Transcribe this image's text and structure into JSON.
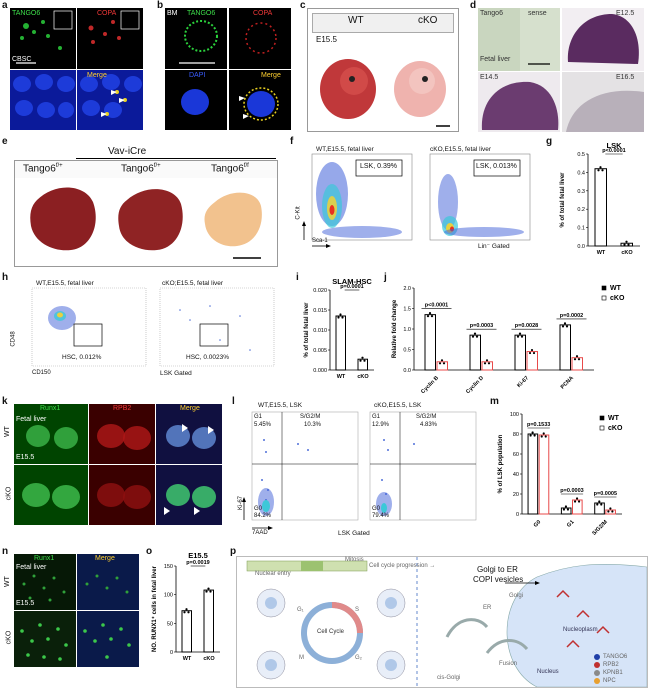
{
  "panels": {
    "a": {
      "letter": "a",
      "tango6": "TANGO6",
      "copa": "COPA",
      "cell": "CBSC",
      "merge": "Merge"
    },
    "b": {
      "letter": "b",
      "bm": "BM",
      "tango6": "TANGO6",
      "copa": "COPA",
      "dapi": "DAPI",
      "merge": "Merge"
    },
    "c": {
      "letter": "c",
      "wt": "WT",
      "cko": "cKO",
      "stage": "E15.5"
    },
    "d": {
      "letter": "d",
      "tango6": "Tango6",
      "sense": "sense",
      "e125": "E12.5",
      "fetal_liver": "Fetal liver",
      "e145": "E14.5",
      "e165": "E16.5"
    },
    "e": {
      "letter": "e",
      "vav": "Vav-iCre",
      "g1": "Tango6",
      "g1sup": "f/+",
      "g2": "Tango6",
      "g2sup": "f/+",
      "g3": "Tango6",
      "g3sup": "f/f"
    },
    "f": {
      "letter": "f",
      "wt_title": "WT,E15.5, fetal liver",
      "cko_title": "cKO,E15.5, fetal liver",
      "wt_gate": "LSK, 0.39%",
      "cko_gate": "LSK, 0.013%",
      "ylab": "C-Kit",
      "xlab": "Sca-1",
      "gated": "Lin⁻ Gated"
    },
    "h": {
      "letter": "h",
      "wt_title": "WT,E15.5, fetal liver",
      "cko_title": "cKO;E15.5, fetal liver",
      "wt_gate": "HSC, 0.012%",
      "cko_gate": "HSC, 0.0023%",
      "ylab": "CD48",
      "xlab": "CD150",
      "gated": "LSK Gated"
    },
    "k": {
      "letter": "k",
      "runx1": "Runx1",
      "rpb2": "RPB2",
      "merge": "Merge",
      "tissue": "Fetal liver",
      "wt": "WT",
      "cko": "cKO",
      "stage": "E15.5"
    },
    "l": {
      "letter": "l",
      "wt_title": "WT,E15.5, LSK",
      "cko_title": "cKO,E15.5, LSK",
      "wt_g1": "G1",
      "wt_g1v": "5.45%",
      "wt_s": "S/G2/M",
      "wt_sv": "10.3%",
      "wt_g0": "G0",
      "wt_g0v": "84.2%",
      "cko_g1": "G1",
      "cko_g1v": "12.9%",
      "cko_s": "S/G2/M",
      "cko_sv": "4.83%",
      "cko_g0": "G0",
      "cko_g0v": "79.4%",
      "ylab": "Ki-67",
      "xlab": "7AAD",
      "gated": "LSK Gated"
    },
    "n": {
      "letter": "n",
      "runx1": "Runx1",
      "merge": "Merge",
      "tissue": "Fetal liver",
      "wt": "WT",
      "cko": "cKO",
      "stage": "E15.5"
    },
    "p": {
      "letter": "p",
      "nuclear_entry": "Nuclear entry",
      "cell_cycle": "Cell cycle progression →",
      "mitosis": "Mitosis",
      "cell_cycle_center": "Cell Cycle",
      "g1": "G₁",
      "s": "S",
      "g2": "G₂",
      "m": "M",
      "golgi_to_er": "Golgi to ER",
      "copi": "COPI vesicles",
      "er": "ER",
      "golgi": "Golgi",
      "cis_golgi": "cis-Golgi",
      "nucleus": "Nucleus",
      "nucleoplasm": "Nucleoplasm",
      "fusion": "Fusion",
      "legend": [
        "TANGO6",
        "RPB2",
        "KPNB1",
        "NPC"
      ]
    }
  },
  "chart_data": [
    {
      "id": "g",
      "type": "bar",
      "title": "LSK",
      "ylabel": "% of total fetal liver",
      "categories": [
        "WT",
        "cKO"
      ],
      "values": [
        0.42,
        0.015
      ],
      "ylim": [
        0,
        0.5
      ],
      "yticks": [
        "0.0",
        "0.1",
        "0.2",
        "0.3",
        "0.4",
        "0.5"
      ],
      "annotations": [
        "p<0.0001"
      ]
    },
    {
      "id": "i",
      "type": "bar",
      "title": "SLAM-HSC",
      "ylabel": "% of total fetal liver",
      "categories": [
        "WT",
        "cKO"
      ],
      "values": [
        0.0135,
        0.0027
      ],
      "ylim": [
        0,
        0.02
      ],
      "yticks": [
        "0.000",
        "0.005",
        "0.010",
        "0.015",
        "0.020"
      ],
      "annotations": [
        "p=0.0001"
      ]
    },
    {
      "id": "j",
      "type": "bar",
      "ylabel": "Relative fold change",
      "categories": [
        "Cyclin B",
        "Cyclin D",
        "Ki-67",
        "PCNA"
      ],
      "series": [
        {
          "name": "WT",
          "values": [
            1.35,
            0.85,
            0.85,
            1.1
          ]
        },
        {
          "name": "cKO",
          "values": [
            0.2,
            0.2,
            0.45,
            0.3
          ]
        }
      ],
      "ylim": [
        0,
        2.0
      ],
      "yticks": [
        "0.0",
        "0.5",
        "1.0",
        "1.5",
        "2.0"
      ],
      "annotations": [
        "p<0.0001",
        "p=0.0003",
        "p=0.0028",
        "p=0.0002"
      ]
    },
    {
      "id": "m",
      "type": "bar",
      "ylabel": "% of LSK population",
      "categories": [
        "G0",
        "G1",
        "S/G2/M"
      ],
      "series": [
        {
          "name": "WT",
          "values": [
            80,
            6,
            11
          ]
        },
        {
          "name": "cKO",
          "values": [
            79,
            14,
            4
          ]
        }
      ],
      "ylim": [
        0,
        100
      ],
      "yticks": [
        "0",
        "20",
        "40",
        "60",
        "80",
        "100"
      ],
      "annotations": [
        "p=0.1533",
        "p=0.0003",
        "p=0.0005"
      ]
    },
    {
      "id": "o",
      "type": "bar",
      "title": "E15.5",
      "ylabel": "NO. RUNX1⁺ cells in fetal liver",
      "categories": [
        "WT",
        "cKO"
      ],
      "values": [
        72,
        108
      ],
      "ylim": [
        0,
        150
      ],
      "yticks": [
        "0",
        "50",
        "100",
        "150"
      ],
      "annotations": [
        "p=0.0019"
      ]
    }
  ]
}
